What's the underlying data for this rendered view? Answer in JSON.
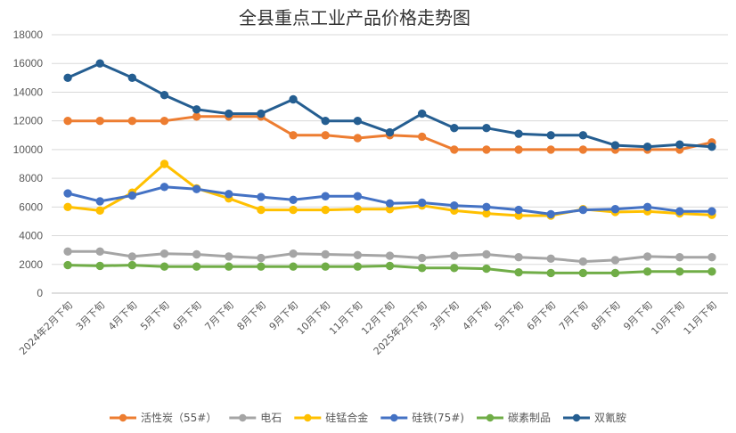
{
  "chart_data": {
    "type": "line",
    "title": "全县重点工业产品价格走势图",
    "xlabel": "",
    "ylabel": "",
    "ylim": [
      0,
      18000
    ],
    "yticks": [
      0,
      2000,
      4000,
      6000,
      8000,
      10000,
      12000,
      14000,
      16000,
      18000
    ],
    "grid": true,
    "legend_position": "bottom",
    "categories": [
      "2024年2月下旬",
      "3月下旬",
      "4月下旬",
      "5月下旬",
      "6月下旬",
      "7月下旬",
      "8月下旬",
      "9月下旬",
      "10月下旬",
      "11月下旬",
      "12月下旬",
      "2025年2月下旬",
      "3月下旬",
      "4月下旬",
      "5月下旬",
      "6月下旬",
      "7月下旬",
      "8月下旬",
      "9月下旬",
      "10月下旬",
      "11月下旬"
    ],
    "series": [
      {
        "name": "活性炭（55#）",
        "color": "#ED7D31",
        "values": [
          12000,
          12000,
          12000,
          12000,
          12300,
          12300,
          12300,
          11000,
          11000,
          10800,
          11000,
          10900,
          10000,
          10000,
          10000,
          10000,
          10000,
          10000,
          10000,
          10000,
          10500
        ]
      },
      {
        "name": "电石",
        "color": "#A5A5A5",
        "values": [
          2900,
          2900,
          2550,
          2750,
          2700,
          2550,
          2450,
          2750,
          2700,
          2650,
          2600,
          2450,
          2600,
          2700,
          2500,
          2400,
          2200,
          2300,
          2550,
          2500,
          2500
        ]
      },
      {
        "name": "硅锰合金",
        "color": "#FFC000",
        "values": [
          6000,
          5750,
          7000,
          9000,
          7300,
          6600,
          5800,
          5800,
          5800,
          5850,
          5850,
          6100,
          5750,
          5550,
          5400,
          5400,
          5850,
          5650,
          5700,
          5550,
          5450
        ]
      },
      {
        "name": "硅铁(75#)",
        "color": "#4472C4",
        "values": [
          6950,
          6400,
          6800,
          7400,
          7250,
          6900,
          6700,
          6500,
          6750,
          6750,
          6250,
          6300,
          6100,
          6000,
          5800,
          5500,
          5800,
          5850,
          6000,
          5700,
          5700
        ]
      },
      {
        "name": "碳素制品",
        "color": "#70AD47",
        "values": [
          1950,
          1900,
          1950,
          1850,
          1850,
          1850,
          1850,
          1850,
          1850,
          1850,
          1900,
          1750,
          1750,
          1700,
          1450,
          1400,
          1400,
          1400,
          1500,
          1500,
          1500
        ]
      },
      {
        "name": "双氰胺",
        "color": "#255E91",
        "values": [
          15000,
          16000,
          15000,
          13800,
          12800,
          12500,
          12500,
          13500,
          12000,
          12000,
          11200,
          12500,
          11500,
          11500,
          11100,
          11000,
          11000,
          10300,
          10200,
          10350,
          10200
        ]
      }
    ]
  }
}
